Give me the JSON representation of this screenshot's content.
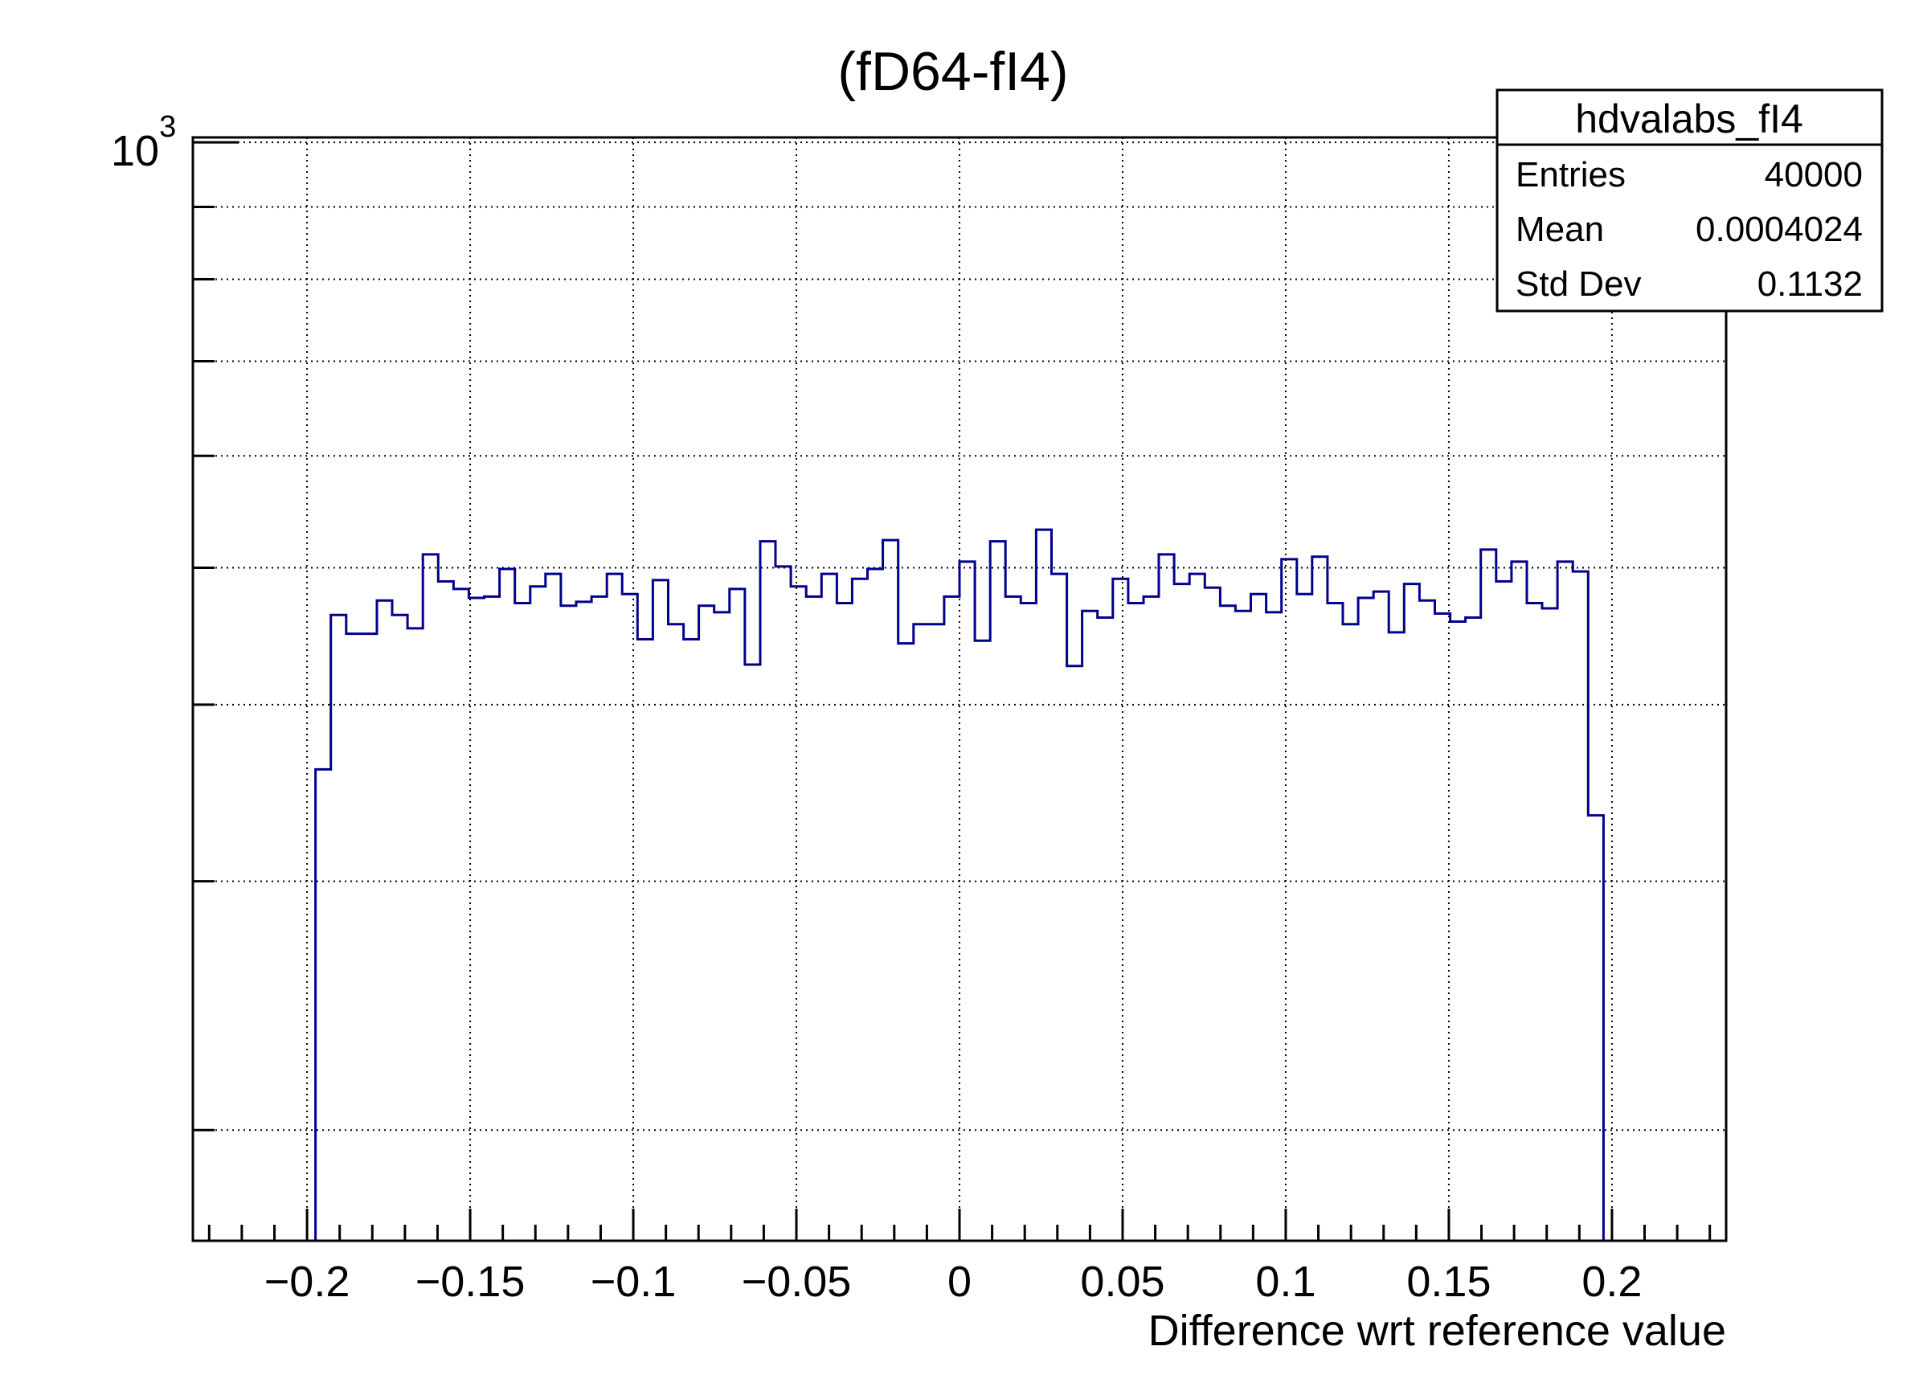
{
  "title": "(fD64-fI4)",
  "y_axis": {
    "base": "10",
    "exponent": "3"
  },
  "x_axis": {
    "title": "Difference wrt reference value"
  },
  "stats": {
    "title": "hdvalabs_fI4",
    "rows": [
      {
        "label": "Entries",
        "value": "40000"
      },
      {
        "label": "Mean",
        "value": "0.0004024"
      },
      {
        "label": "Std Dev",
        "value": "0.1132"
      }
    ]
  },
  "colors": {
    "histogram": "#00008c",
    "frame": "#000000",
    "grid": "#000000",
    "background": "#ffffff"
  },
  "chart_data": {
    "type": "bar",
    "subtype": "step-histogram",
    "title": "(fD64-fI4)",
    "xlabel": "Difference wrt reference value",
    "ylabel": "",
    "x_range": [
      -0.235,
      0.235
    ],
    "y_range": [
      167,
      1008
    ],
    "y_scale": "log",
    "grid": true,
    "x_major_ticks": [
      -0.2,
      -0.15,
      -0.1,
      -0.05,
      0,
      0.05,
      0.1,
      0.15,
      0.2
    ],
    "x_major_labels": [
      "−0.2",
      "−0.15",
      "−0.1",
      "−0.05",
      "0",
      "0.05",
      "0.1",
      "0.15",
      "0.2"
    ],
    "x_minor_step": 0.01,
    "y_gridlines": [
      200,
      300,
      400,
      500,
      600,
      700,
      800,
      900,
      1000
    ],
    "y_labeled_tick": 1000,
    "histogram": {
      "name": "hdvalabs_fI4",
      "entries": 40000,
      "mean": 0.0004024,
      "std_dev": 0.1132,
      "bin_start": -0.1974,
      "bin_width": 0.0047,
      "counts": [
        360,
        463,
        449,
        449,
        474,
        463,
        453,
        511,
        489,
        483,
        476,
        477,
        499,
        472,
        485,
        495,
        470,
        473,
        477,
        495,
        479,
        445,
        490,
        456,
        445,
        470,
        465,
        483,
        427,
        522,
        501,
        485,
        477,
        495,
        472,
        491,
        499,
        523,
        442,
        456,
        456,
        477,
        505,
        444,
        522,
        477,
        472,
        532,
        495,
        426,
        466,
        461,
        491,
        472,
        477,
        511,
        487,
        495,
        484,
        470,
        466,
        479,
        465,
        507,
        479,
        509,
        472,
        456,
        476,
        481,
        450,
        487,
        474,
        464,
        458,
        461,
        515,
        489,
        505,
        472,
        468,
        505,
        497,
        334
      ]
    }
  }
}
